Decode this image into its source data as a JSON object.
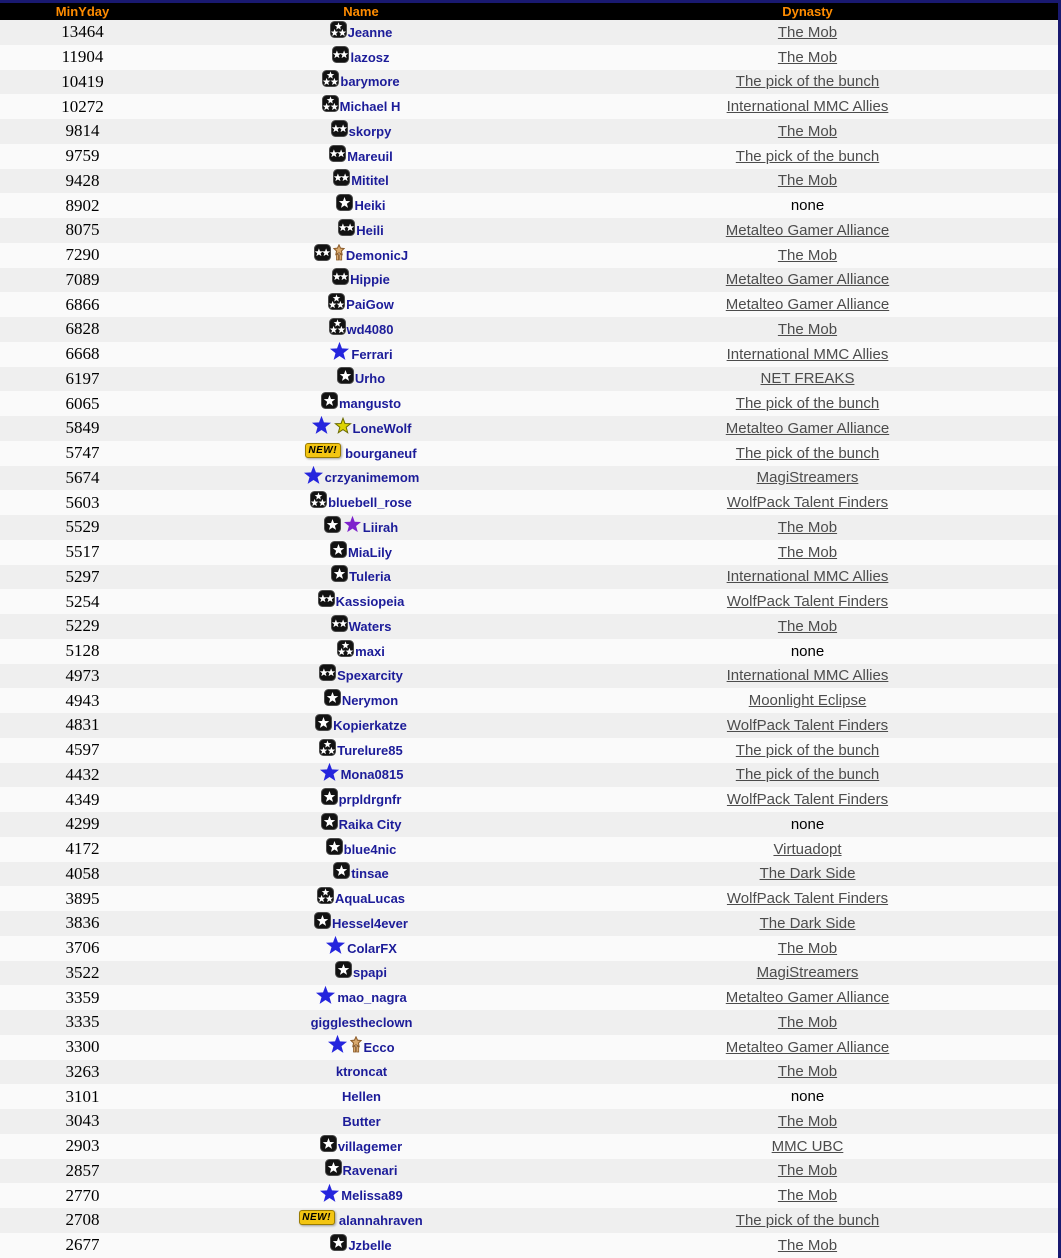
{
  "columns": {
    "minyday": "MinYday",
    "name": "Name",
    "dynasty": "Dynasty"
  },
  "labels": {
    "new_badge": "NEW!",
    "no_dynasty": "none"
  },
  "colors": {
    "header_bg": "#000000",
    "header_text": "#ff8c00",
    "border": "#191970",
    "row_odd": "#efefef",
    "row_even": "#fafafa",
    "number_text": "#000000",
    "name_text": "#1c1c99",
    "dynasty_link": "#4c4c4c",
    "dynasty_none": "#000000",
    "badge_bg": "#121212",
    "star_white": "#ffffff",
    "blue_star": "#2525dd",
    "gold_star": "#ded403",
    "gold_star_edge": "#6b6b00",
    "purple_star": "#7d22cc",
    "mascot_tan": "#d9a96d",
    "mascot_edge": "#8a5a28",
    "new_badge_bg": "#f3c512",
    "new_badge_text": "#000000"
  },
  "rows": [
    {
      "minyday": "13464",
      "icons": [
        "badge-3-star"
      ],
      "name": "Jeanne",
      "dynasty": "The Mob",
      "is_link": true
    },
    {
      "minyday": "11904",
      "icons": [
        "badge-2-star"
      ],
      "name": "lazosz",
      "dynasty": "The Mob",
      "is_link": true
    },
    {
      "minyday": "10419",
      "icons": [
        "badge-3-star"
      ],
      "name": "barymore",
      "dynasty": "The pick of the bunch",
      "is_link": true
    },
    {
      "minyday": "10272",
      "icons": [
        "badge-3-star"
      ],
      "name": "Michael H",
      "dynasty": "International MMC Allies",
      "is_link": true
    },
    {
      "minyday": "9814",
      "icons": [
        "badge-2-star"
      ],
      "name": "skorpy",
      "dynasty": "The Mob",
      "is_link": true
    },
    {
      "minyday": "9759",
      "icons": [
        "badge-2-star"
      ],
      "name": "Mareuil",
      "dynasty": "The pick of the bunch",
      "is_link": true
    },
    {
      "minyday": "9428",
      "icons": [
        "badge-2-star"
      ],
      "name": "Mititel",
      "dynasty": "The Mob",
      "is_link": true
    },
    {
      "minyday": "8902",
      "icons": [
        "badge-1-star"
      ],
      "name": "Heiki",
      "dynasty": "none",
      "is_link": false
    },
    {
      "minyday": "8075",
      "icons": [
        "badge-2-star"
      ],
      "name": "Heili",
      "dynasty": "Metalteo Gamer Alliance",
      "is_link": true
    },
    {
      "minyday": "7290",
      "icons": [
        "badge-2-star",
        "mascot"
      ],
      "name": "DemonicJ",
      "dynasty": "The Mob",
      "is_link": true
    },
    {
      "minyday": "7089",
      "icons": [
        "badge-2-star"
      ],
      "name": "Hippie",
      "dynasty": "Metalteo Gamer Alliance",
      "is_link": true
    },
    {
      "minyday": "6866",
      "icons": [
        "badge-3-star"
      ],
      "name": "PaiGow",
      "dynasty": "Metalteo Gamer Alliance",
      "is_link": true
    },
    {
      "minyday": "6828",
      "icons": [
        "badge-3-star"
      ],
      "name": "wd4080",
      "dynasty": "The Mob",
      "is_link": true
    },
    {
      "minyday": "6668",
      "icons": [
        "blue-star"
      ],
      "name": "Ferrari",
      "dynasty": "International MMC Allies",
      "is_link": true
    },
    {
      "minyday": "6197",
      "icons": [
        "badge-1-star"
      ],
      "name": "Urho",
      "dynasty": "NET FREAKS",
      "is_link": true
    },
    {
      "minyday": "6065",
      "icons": [
        "badge-1-star"
      ],
      "name": "mangusto",
      "dynasty": "The pick of the bunch",
      "is_link": true
    },
    {
      "minyday": "5849",
      "icons": [
        "blue-star",
        "gold-star"
      ],
      "name": "LoneWolf",
      "dynasty": "Metalteo Gamer Alliance",
      "is_link": true
    },
    {
      "minyday": "5747",
      "icons": [
        "new-badge"
      ],
      "name": "bourganeuf",
      "dynasty": "The pick of the bunch",
      "is_link": true
    },
    {
      "minyday": "5674",
      "icons": [
        "blue-star"
      ],
      "name": "crzyanimemom",
      "dynasty": "MagiStreamers",
      "is_link": true
    },
    {
      "minyday": "5603",
      "icons": [
        "badge-3-star"
      ],
      "name": "bluebell_rose",
      "dynasty": "WolfPack Talent Finders",
      "is_link": true
    },
    {
      "minyday": "5529",
      "icons": [
        "badge-1-star",
        "purple-star"
      ],
      "name": "Liirah",
      "dynasty": "The Mob",
      "is_link": true
    },
    {
      "minyday": "5517",
      "icons": [
        "badge-1-star"
      ],
      "name": "MiaLily",
      "dynasty": "The Mob",
      "is_link": true
    },
    {
      "minyday": "5297",
      "icons": [
        "badge-1-star"
      ],
      "name": "Tuleria",
      "dynasty": "International MMC Allies",
      "is_link": true
    },
    {
      "minyday": "5254",
      "icons": [
        "badge-2-star"
      ],
      "name": "Kassiopeia",
      "dynasty": "WolfPack Talent Finders",
      "is_link": true
    },
    {
      "minyday": "5229",
      "icons": [
        "badge-2-star"
      ],
      "name": "Waters",
      "dynasty": "The Mob",
      "is_link": true
    },
    {
      "minyday": "5128",
      "icons": [
        "badge-3-star"
      ],
      "name": "maxi",
      "dynasty": "none",
      "is_link": false
    },
    {
      "minyday": "4973",
      "icons": [
        "badge-2-star"
      ],
      "name": "Spexarcity",
      "dynasty": "International MMC Allies",
      "is_link": true
    },
    {
      "minyday": "4943",
      "icons": [
        "badge-1-star"
      ],
      "name": "Nerymon",
      "dynasty": "Moonlight Eclipse",
      "is_link": true
    },
    {
      "minyday": "4831",
      "icons": [
        "badge-1-star"
      ],
      "name": "Kopierkatze",
      "dynasty": "WolfPack Talent Finders",
      "is_link": true
    },
    {
      "minyday": "4597",
      "icons": [
        "badge-3-star"
      ],
      "name": "Turelure85",
      "dynasty": "The pick of the bunch",
      "is_link": true
    },
    {
      "minyday": "4432",
      "icons": [
        "blue-star"
      ],
      "name": "Mona0815",
      "dynasty": "The pick of the bunch",
      "is_link": true
    },
    {
      "minyday": "4349",
      "icons": [
        "badge-1-star"
      ],
      "name": "prpldrgnfr",
      "dynasty": "WolfPack Talent Finders",
      "is_link": true
    },
    {
      "minyday": "4299",
      "icons": [
        "badge-1-star"
      ],
      "name": "Raika City",
      "dynasty": "none",
      "is_link": false
    },
    {
      "minyday": "4172",
      "icons": [
        "badge-1-star"
      ],
      "name": "blue4nic",
      "dynasty": "Virtuadopt",
      "is_link": true
    },
    {
      "minyday": "4058",
      "icons": [
        "badge-1-star"
      ],
      "name": "tinsae",
      "dynasty": "The Dark Side",
      "is_link": true
    },
    {
      "minyday": "3895",
      "icons": [
        "badge-3-star"
      ],
      "name": "AquaLucas",
      "dynasty": "WolfPack Talent Finders",
      "is_link": true
    },
    {
      "minyday": "3836",
      "icons": [
        "badge-1-star"
      ],
      "name": "Hessel4ever",
      "dynasty": "The Dark Side",
      "is_link": true
    },
    {
      "minyday": "3706",
      "icons": [
        "blue-star"
      ],
      "name": "ColarFX",
      "dynasty": "The Mob",
      "is_link": true
    },
    {
      "minyday": "3522",
      "icons": [
        "badge-1-star"
      ],
      "name": "spapi",
      "dynasty": "MagiStreamers",
      "is_link": true
    },
    {
      "minyday": "3359",
      "icons": [
        "blue-star"
      ],
      "name": "mao_nagra",
      "dynasty": "Metalteo Gamer Alliance",
      "is_link": true
    },
    {
      "minyday": "3335",
      "icons": [],
      "name": "gigglestheclown",
      "dynasty": "The Mob",
      "is_link": true
    },
    {
      "minyday": "3300",
      "icons": [
        "blue-star",
        "mascot"
      ],
      "name": "Ecco",
      "dynasty": "Metalteo Gamer Alliance",
      "is_link": true
    },
    {
      "minyday": "3263",
      "icons": [],
      "name": "ktroncat",
      "dynasty": "The Mob",
      "is_link": true
    },
    {
      "minyday": "3101",
      "icons": [],
      "name": "Hellen",
      "dynasty": "none",
      "is_link": false
    },
    {
      "minyday": "3043",
      "icons": [],
      "name": "Butter",
      "dynasty": "The Mob",
      "is_link": true
    },
    {
      "minyday": "2903",
      "icons": [
        "badge-1-star"
      ],
      "name": "villagemer",
      "dynasty": "MMC UBC",
      "is_link": true
    },
    {
      "minyday": "2857",
      "icons": [
        "badge-1-star"
      ],
      "name": "Ravenari",
      "dynasty": "The Mob",
      "is_link": true
    },
    {
      "minyday": "2770",
      "icons": [
        "blue-star"
      ],
      "name": "Melissa89",
      "dynasty": "The Mob",
      "is_link": true
    },
    {
      "minyday": "2708",
      "icons": [
        "new-badge"
      ],
      "name": "alannahraven",
      "dynasty": "The pick of the bunch",
      "is_link": true
    },
    {
      "minyday": "2677",
      "icons": [
        "badge-1-star"
      ],
      "name": "Jzbelle",
      "dynasty": "The Mob",
      "is_link": true
    }
  ]
}
